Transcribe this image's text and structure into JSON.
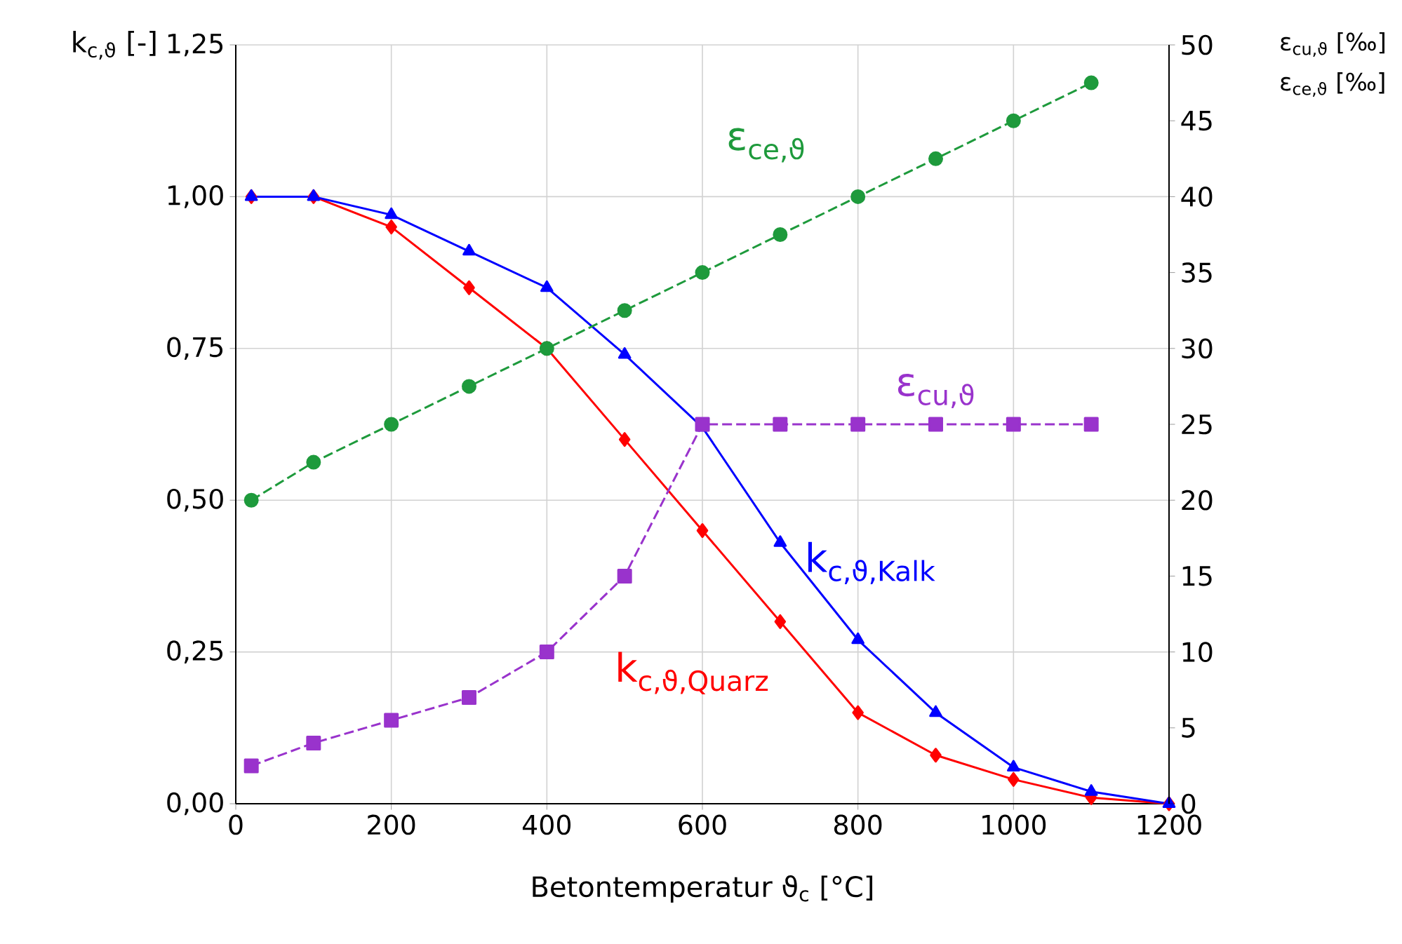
{
  "chart_data": {
    "type": "line",
    "xlabel": "Betontemperatur ϑ$_{c}$ [°C]",
    "ylabel": "k$_{c,ϑ}$ [-]",
    "y2label": "ε$_{cu,ϑ}$ [‰]",
    "annotations": [
      "ε$_{ce,ϑ}$ [‰]"
    ],
    "xlim": [
      0,
      1200
    ],
    "xticks": [
      0,
      200,
      400,
      600,
      800,
      1000,
      1200
    ],
    "ylim": [
      0,
      1.25
    ],
    "yticks": [
      {
        "value": 0,
        "label": "0,00"
      },
      {
        "value": 0.25,
        "label": "0,25"
      },
      {
        "value": 0.5,
        "label": "0,50"
      },
      {
        "value": 0.75,
        "label": "0,75"
      },
      {
        "value": 1.0,
        "label": "1,00"
      },
      {
        "value": 1.25,
        "label": "1,25"
      }
    ],
    "y2lim": [
      0,
      50
    ],
    "y2ticks": [
      0,
      5,
      10,
      15,
      20,
      25,
      30,
      35,
      40,
      45,
      50
    ],
    "grid": true,
    "series": [
      {
        "name": "k$_{c,ϑ,Quarz}$",
        "color": "#ff0000",
        "marker": "diamond",
        "line_style": "solid",
        "x": [
          20,
          100,
          200,
          300,
          400,
          500,
          600,
          700,
          800,
          900,
          1000,
          1100,
          1200
        ],
        "values": [
          1.0,
          1.0,
          0.95,
          0.85,
          0.75,
          0.6,
          0.45,
          0.3,
          0.15,
          0.08,
          0.04,
          0.01,
          0.0
        ]
      },
      {
        "name": "k$_{c,ϑ,Kalk}$",
        "color": "#0000ff",
        "marker": "triangle",
        "line_style": "solid",
        "x": [
          20,
          100,
          200,
          300,
          400,
          500,
          600,
          700,
          800,
          900,
          1000,
          1100,
          1200
        ],
        "values": [
          1.0,
          1.0,
          0.97,
          0.91,
          0.85,
          0.74,
          0.62,
          0.43,
          0.27,
          0.15,
          0.06,
          0.02,
          0.0
        ]
      },
      {
        "name": "ε$_{ce,ϑ}$",
        "color": "#1e9a3c",
        "marker": "circle",
        "line_style": "dashed",
        "axis": "y2",
        "x": [
          20,
          100,
          200,
          300,
          400,
          500,
          600,
          700,
          800,
          900,
          1000,
          1100
        ],
        "values": [
          20,
          22.5,
          25,
          27.5,
          30,
          32.5,
          35,
          37.5,
          40,
          42.5,
          45,
          47.5
        ]
      },
      {
        "name": "ε$_{cu,ϑ}$",
        "color": "#9933cc",
        "marker": "square",
        "line_style": "dashed",
        "axis": "y2",
        "x": [
          20,
          100,
          200,
          300,
          400,
          500,
          600,
          700,
          800,
          900,
          1000,
          1100
        ],
        "values": [
          2.5,
          4,
          5.5,
          7,
          10,
          15,
          25,
          25,
          25,
          25,
          25,
          25
        ]
      }
    ]
  }
}
